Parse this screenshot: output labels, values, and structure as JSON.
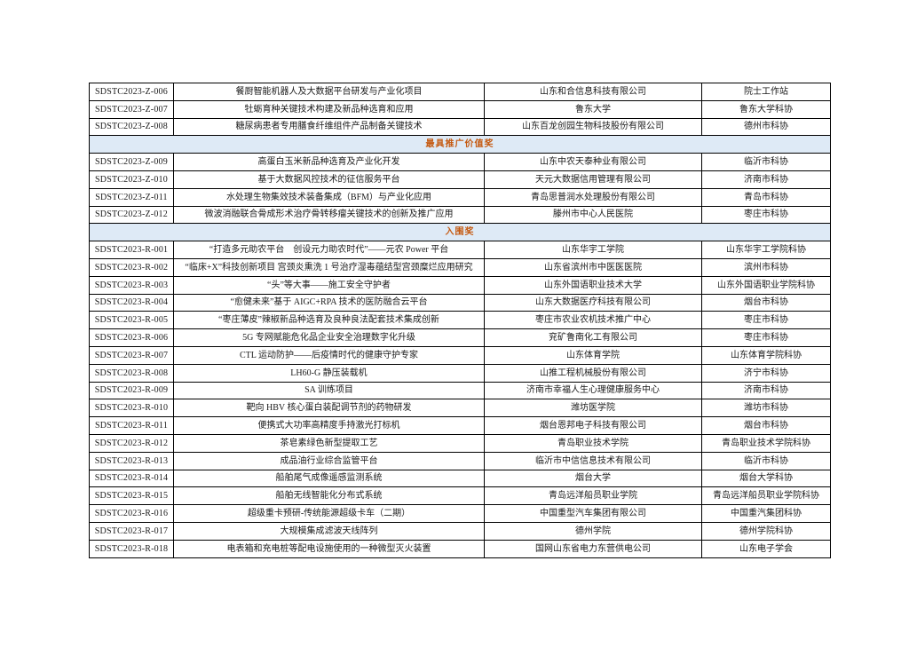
{
  "colors": {
    "page_background": "#FFFFFF",
    "section_header_background": "#DEEAF6",
    "section_header_text": "#C55A11",
    "table_border": "#000000",
    "body_text": "#1A1A1A"
  },
  "table": {
    "rows": [
      {
        "type": "data",
        "id": "SDSTC2023-Z-006",
        "project": "餐厨智能机器人及大数据平台研发与产业化项目",
        "organization": "山东和合信息科技有限公司",
        "association": "院士工作站"
      },
      {
        "type": "data",
        "id": "SDSTC2023-Z-007",
        "project": "牡蛎育种关键技术构建及新品种选育和应用",
        "organization": "鲁东大学",
        "association": "鲁东大学科协"
      },
      {
        "type": "data",
        "id": "SDSTC2023-Z-008",
        "project": "糖尿病患者专用膳食纤维组件产品制备关键技术",
        "organization": "山东百龙创园生物科技股份有限公司",
        "association": "德州市科协"
      },
      {
        "type": "section",
        "label": "最具推广价值奖"
      },
      {
        "type": "data",
        "id": "SDSTC2023-Z-009",
        "project": "高蛋白玉米新品种选育及产业化开发",
        "organization": "山东中农天泰种业有限公司",
        "association": "临沂市科协"
      },
      {
        "type": "data",
        "id": "SDSTC2023-Z-010",
        "project": "基于大数据风控技术的征信服务平台",
        "organization": "天元大数据信用管理有限公司",
        "association": "济南市科协"
      },
      {
        "type": "data",
        "id": "SDSTC2023-Z-011",
        "project": "水处理生物集效技术装备集成（BFM）与产业化应用",
        "organization": "青岛思普润水处理股份有限公司",
        "association": "青岛市科协"
      },
      {
        "type": "data",
        "id": "SDSTC2023-Z-012",
        "project": "微波消融联合骨成形术治疗骨转移瘤关键技术的创新及推广应用",
        "organization": "滕州市中心人民医院",
        "association": "枣庄市科协"
      },
      {
        "type": "section",
        "label": "入围奖"
      },
      {
        "type": "data",
        "id": "SDSTC2023-R-001",
        "project": "“打造多元助农平台　创设元力助农时代”——元农 Power 平台",
        "organization": "山东华宇工学院",
        "association": "山东华宇工学院科协"
      },
      {
        "type": "data",
        "id": "SDSTC2023-R-002",
        "project": "“临床+X”科技创新项目 宫颈炎熏洗 1 号治疗湿毒蕴结型宫颈糜烂应用研究",
        "organization": "山东省滨州市中医医医院",
        "association": "滨州市科协"
      },
      {
        "type": "data",
        "id": "SDSTC2023-R-003",
        "project": "“头”等大事——施工安全守护者",
        "organization": "山东外国语职业技术大学",
        "association": "山东外国语职业学院科协"
      },
      {
        "type": "data",
        "id": "SDSTC2023-R-004",
        "project": "“愈健未来”基于 AIGC+RPA 技术的医防融合云平台",
        "organization": "山东大数据医疗科技有限公司",
        "association": "烟台市科协"
      },
      {
        "type": "data",
        "id": "SDSTC2023-R-005",
        "project": "“枣庄薄皮”辣椒新品种选育及良种良法配套技术集成创新",
        "organization": "枣庄市农业农机技术推广中心",
        "association": "枣庄市科协"
      },
      {
        "type": "data",
        "id": "SDSTC2023-R-006",
        "project": "5G 专网赋能危化品企业安全治理数字化升级",
        "organization": "兖矿鲁南化工有限公司",
        "association": "枣庄市科协"
      },
      {
        "type": "data",
        "id": "SDSTC2023-R-007",
        "project": "CTL 运动防护——后疫情时代的健康守护专家",
        "organization": "山东体育学院",
        "association": "山东体育学院科协"
      },
      {
        "type": "data",
        "id": "SDSTC2023-R-008",
        "project": "LH60-G 静压装载机",
        "organization": "山推工程机械股份有限公司",
        "association": "济宁市科协"
      },
      {
        "type": "data",
        "id": "SDSTC2023-R-009",
        "project": "SA 训练项目",
        "organization": "济南市幸福人生心理健康服务中心",
        "association": "济南市科协"
      },
      {
        "type": "data",
        "id": "SDSTC2023-R-010",
        "project": "靶向 HBV 核心蛋白装配调节剂的药物研发",
        "organization": "潍坊医学院",
        "association": "潍坊市科协"
      },
      {
        "type": "data",
        "id": "SDSTC2023-R-011",
        "project": "便携式大功率高精度手持激光打标机",
        "organization": "烟台恩邦电子科技有限公司",
        "association": "烟台市科协"
      },
      {
        "type": "data",
        "id": "SDSTC2023-R-012",
        "project": "茶皂素绿色新型提取工艺",
        "organization": "青岛职业技术学院",
        "association": "青岛职业技术学院科协"
      },
      {
        "type": "data",
        "id": "SDSTC2023-R-013",
        "project": "成品油行业综合监管平台",
        "organization": "临沂市中信信息技术有限公司",
        "association": "临沂市科协"
      },
      {
        "type": "data",
        "id": "SDSTC2023-R-014",
        "project": "船舶尾气成像遥感监测系统",
        "organization": "烟台大学",
        "association": "烟台大学科协"
      },
      {
        "type": "data",
        "id": "SDSTC2023-R-015",
        "project": "船舶无线智能化分布式系统",
        "organization": "青岛远洋船员职业学院",
        "association": "青岛远洋船员职业学院科协"
      },
      {
        "type": "data",
        "id": "SDSTC2023-R-016",
        "project": "超级重卡预研-传统能源超级卡车（二期）",
        "organization": "中国重型汽车集团有限公司",
        "association": "中国重汽集团科协"
      },
      {
        "type": "data",
        "id": "SDSTC2023-R-017",
        "project": "大规模集成滤波天线阵列",
        "organization": "德州学院",
        "association": "德州学院科协"
      },
      {
        "type": "data",
        "id": "SDSTC2023-R-018",
        "project": "电表箱和充电桩等配电设施使用的一种微型灭火装置",
        "organization": "国网山东省电力东营供电公司",
        "association": "山东电子学会"
      }
    ]
  }
}
